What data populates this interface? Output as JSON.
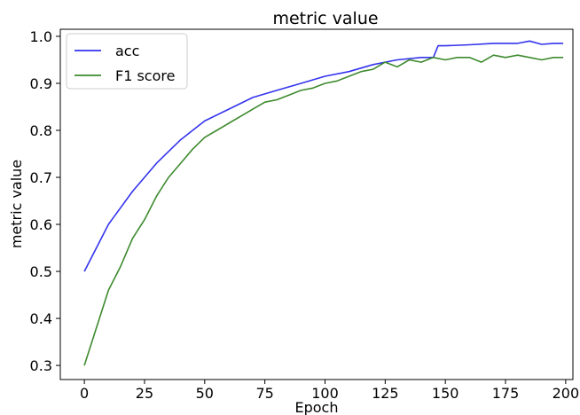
{
  "chart_data": {
    "type": "line",
    "title": "metric value",
    "xlabel": "Epoch",
    "ylabel": "metric value",
    "xlim": [
      -10,
      203
    ],
    "ylim": [
      0.27,
      1.015
    ],
    "xticks": [
      0,
      25,
      50,
      75,
      100,
      125,
      150,
      175,
      200
    ],
    "yticks": [
      0.3,
      0.4,
      0.5,
      0.6,
      0.7,
      0.8,
      0.9,
      1.0
    ],
    "xtick_labels": [
      "0",
      "25",
      "50",
      "75",
      "100",
      "125",
      "150",
      "175",
      "200"
    ],
    "ytick_labels": [
      "0.3",
      "0.4",
      "0.5",
      "0.6",
      "0.7",
      "0.8",
      "0.9",
      "1.0"
    ],
    "grid": false,
    "legend_position": "upper-left",
    "series": [
      {
        "name": "acc",
        "color": "#3333ee",
        "x": [
          0,
          10,
          20,
          30,
          40,
          50,
          60,
          70,
          80,
          90,
          100,
          110,
          120,
          130,
          140,
          145,
          147,
          150,
          160,
          170,
          180,
          185,
          190,
          195,
          199
        ],
        "y": [
          0.5,
          0.6,
          0.67,
          0.73,
          0.78,
          0.82,
          0.845,
          0.87,
          0.885,
          0.9,
          0.915,
          0.925,
          0.94,
          0.95,
          0.955,
          0.955,
          0.98,
          0.98,
          0.982,
          0.985,
          0.985,
          0.99,
          0.983,
          0.985,
          0.985
        ]
      },
      {
        "name": "F1 score",
        "color": "#3d8a2e",
        "x": [
          0,
          5,
          10,
          15,
          20,
          25,
          30,
          35,
          40,
          45,
          50,
          55,
          60,
          65,
          70,
          75,
          80,
          85,
          90,
          95,
          100,
          105,
          110,
          115,
          120,
          125,
          130,
          135,
          140,
          145,
          150,
          155,
          160,
          165,
          170,
          175,
          180,
          185,
          190,
          195,
          199
        ],
        "y": [
          0.3,
          0.38,
          0.46,
          0.51,
          0.57,
          0.61,
          0.66,
          0.7,
          0.73,
          0.76,
          0.785,
          0.8,
          0.815,
          0.83,
          0.845,
          0.86,
          0.865,
          0.875,
          0.885,
          0.89,
          0.9,
          0.905,
          0.915,
          0.925,
          0.93,
          0.945,
          0.935,
          0.95,
          0.945,
          0.955,
          0.95,
          0.955,
          0.955,
          0.945,
          0.96,
          0.955,
          0.96,
          0.955,
          0.95,
          0.955,
          0.955
        ]
      }
    ]
  }
}
